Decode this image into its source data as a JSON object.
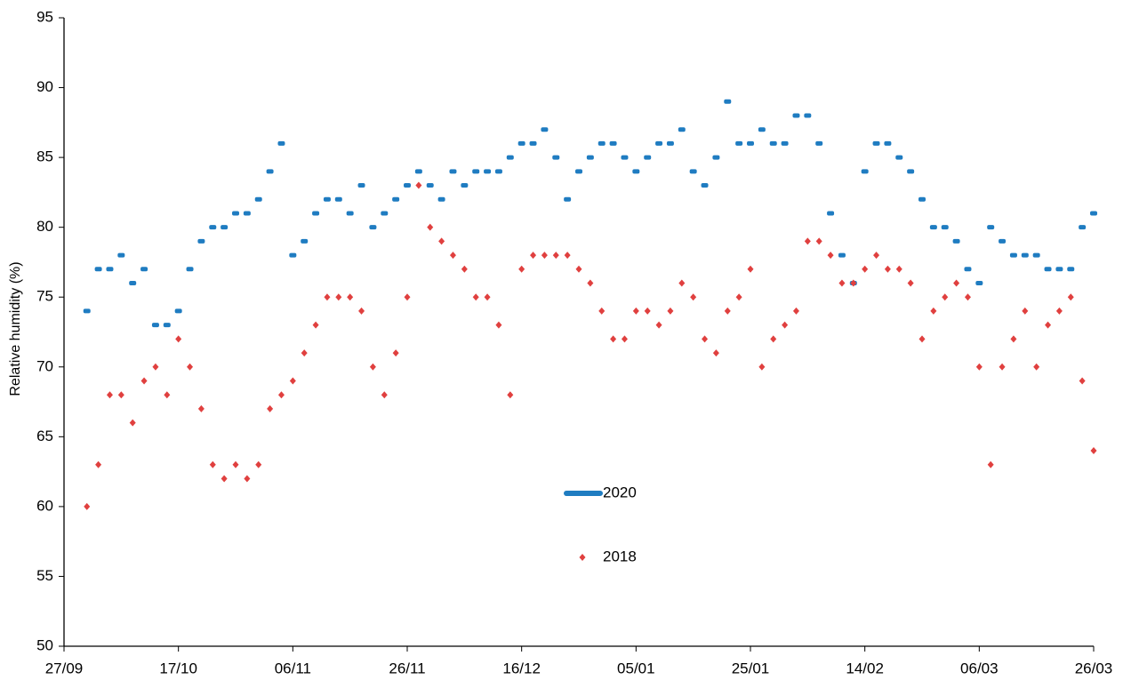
{
  "chart_data": {
    "type": "scatter",
    "ylabel": "Relative humidity (%)",
    "x": [
      "01/10",
      "03/10",
      "05/10",
      "07/10",
      "09/10",
      "11/10",
      "13/10",
      "15/10",
      "17/10",
      "19/10",
      "21/10",
      "23/10",
      "25/10",
      "27/10",
      "29/10",
      "31/10",
      "02/11",
      "04/11",
      "06/11",
      "08/11",
      "10/11",
      "12/11",
      "14/11",
      "16/11",
      "18/11",
      "20/11",
      "22/11",
      "24/11",
      "26/11",
      "28/11",
      "30/11",
      "02/12",
      "04/12",
      "06/12",
      "08/12",
      "10/12",
      "12/12",
      "14/12",
      "16/12",
      "18/12",
      "20/12",
      "22/12",
      "24/12",
      "26/12",
      "28/12",
      "30/12",
      "01/01",
      "03/01",
      "05/01",
      "07/01",
      "09/01",
      "11/01",
      "13/01",
      "15/01",
      "17/01",
      "19/01",
      "21/01",
      "23/01",
      "25/01",
      "27/01",
      "29/01",
      "31/01",
      "02/02",
      "04/02",
      "06/02",
      "08/02",
      "10/02",
      "12/02",
      "14/02",
      "16/02",
      "18/02",
      "20/02",
      "22/02",
      "24/02",
      "26/02",
      "28/02",
      "02/03",
      "04/03",
      "06/03",
      "08/03",
      "10/03",
      "12/03",
      "14/03",
      "16/03",
      "18/03",
      "20/03",
      "22/03",
      "24/03",
      "26/03"
    ],
    "series": [
      {
        "name": "2020",
        "color": "#1f7cc1",
        "marker": "dash",
        "values": [
          74,
          77,
          77,
          78,
          76,
          77,
          73,
          73,
          74,
          77,
          79,
          80,
          80,
          81,
          81,
          82,
          84,
          86,
          78,
          79,
          81,
          82,
          82,
          81,
          83,
          80,
          81,
          82,
          83,
          84,
          83,
          82,
          84,
          83,
          84,
          84,
          84,
          85,
          86,
          86,
          87,
          85,
          82,
          84,
          85,
          86,
          86,
          85,
          84,
          85,
          86,
          86,
          87,
          84,
          83,
          85,
          89,
          86,
          86,
          87,
          86,
          86,
          88,
          88,
          86,
          81,
          78,
          76,
          84,
          86,
          86,
          85,
          84,
          82,
          80,
          80,
          79,
          77,
          76,
          80,
          79,
          78,
          78,
          78,
          77,
          77,
          77,
          80,
          81
        ]
      },
      {
        "name": "2018",
        "color": "#e0403f",
        "marker": "diamond",
        "values": [
          60,
          63,
          68,
          68,
          66,
          69,
          70,
          68,
          72,
          70,
          67,
          63,
          62,
          63,
          62,
          63,
          67,
          68,
          69,
          71,
          73,
          75,
          75,
          75,
          74,
          70,
          68,
          71,
          75,
          83,
          80,
          79,
          78,
          77,
          75,
          75,
          73,
          68,
          77,
          78,
          78,
          78,
          78,
          77,
          76,
          74,
          72,
          72,
          74,
          74,
          73,
          74,
          76,
          75,
          72,
          71,
          74,
          75,
          77,
          70,
          72,
          73,
          74,
          79,
          79,
          78,
          76,
          76,
          77,
          78,
          77,
          77,
          76,
          72,
          74,
          75,
          76,
          75,
          70,
          63,
          70,
          72,
          74,
          70,
          73,
          74,
          75,
          69,
          64
        ]
      }
    ],
    "xlim": [
      "27/09",
      "26/03"
    ],
    "xticks": [
      "27/09",
      "17/10",
      "06/11",
      "26/11",
      "16/12",
      "05/01",
      "25/01",
      "14/02",
      "06/03",
      "26/03"
    ],
    "ylim": [
      50,
      95
    ],
    "yticks": [
      50,
      55,
      60,
      65,
      70,
      75,
      80,
      85,
      90,
      95
    ],
    "grid": false
  }
}
